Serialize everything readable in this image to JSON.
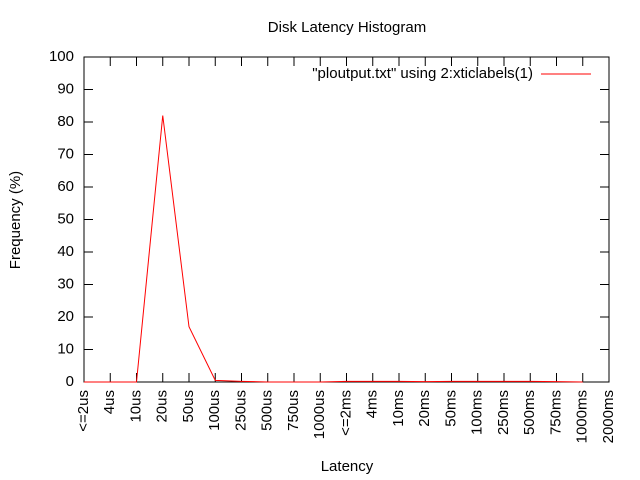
{
  "chart_data": {
    "type": "line",
    "title": "Disk Latency Histogram",
    "x_label": "Latency",
    "y_label": "Frequency (%)",
    "categories": [
      "<=2us",
      "4us",
      "10us",
      "20us",
      "50us",
      "100us",
      "250us",
      "500us",
      "750us",
      "1000us",
      "<=2ms",
      "4ms",
      "10ms",
      "20ms",
      "50ms",
      "100ms",
      "250ms",
      "500ms",
      "750ms",
      "1000ms",
      "2000ms"
    ],
    "series": [
      {
        "name": "\"ploutput.txt\" using 2:xticlabels(1)",
        "color": "#ff0000",
        "values": [
          0,
          0,
          0,
          82,
          17,
          0.5,
          0.2,
          0,
          0,
          0,
          0.2,
          0.2,
          0.2,
          0.1,
          0.2,
          0.2,
          0.2,
          0.2,
          0.1,
          0,
          null
        ]
      }
    ],
    "ylim": [
      0,
      100
    ],
    "yticks": [
      0,
      10,
      20,
      30,
      40,
      50,
      60,
      70,
      80,
      90,
      100
    ],
    "grid": false,
    "legend": "top-right"
  }
}
